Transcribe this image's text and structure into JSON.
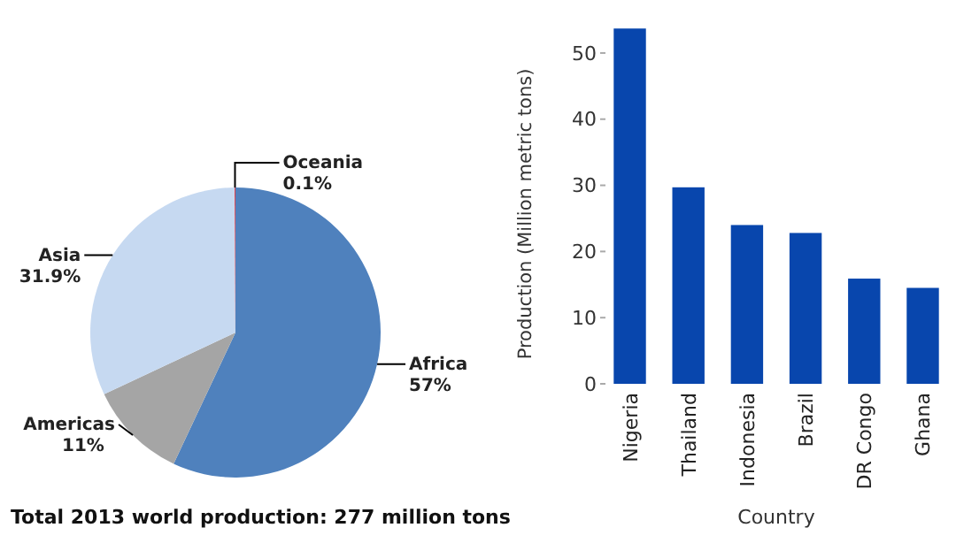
{
  "chart_data": [
    {
      "type": "pie",
      "categories": [
        "Africa",
        "Americas",
        "Asia",
        "Oceania"
      ],
      "values": [
        57,
        11,
        31.9,
        0.1
      ],
      "colors": [
        "#4f81bd",
        "#a5a5a5",
        "#c6d9f1",
        "#e0404a"
      ],
      "value_labels": [
        "57%",
        "11%",
        "31.9%",
        "0.1%"
      ],
      "annotations": [
        "Total 2013 world production: 277 million tons"
      ]
    },
    {
      "type": "bar",
      "categories": [
        "Nigeria",
        "Thailand",
        "Indonesia",
        "Brazil",
        "DR Congo",
        "Ghana"
      ],
      "values": [
        53.7,
        29.7,
        24.0,
        22.8,
        15.9,
        14.5
      ],
      "color": "#0846ad",
      "ylim": [
        0,
        54
      ],
      "yticks": [
        0,
        10,
        20,
        30,
        40,
        50
      ],
      "xlabel": "Country",
      "ylabel": "Production (Million metric tons)",
      "grid": false
    }
  ]
}
